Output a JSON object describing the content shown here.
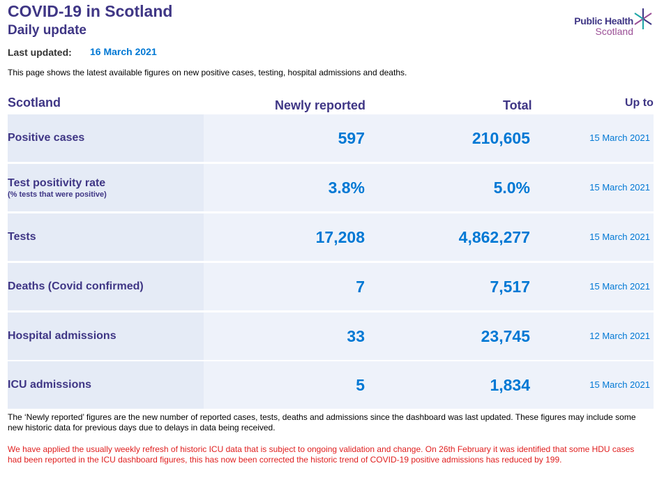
{
  "header": {
    "title": "COVID-19 in Scotland",
    "subtitle": "Daily update",
    "last_updated_label": "Last updated:",
    "last_updated_value": "16 March 2021",
    "intro": "This page shows the latest available figures on new positive cases, testing, hospital admissions and deaths."
  },
  "logo": {
    "line1": "Public Health",
    "line2": "Scotland"
  },
  "table": {
    "headers": {
      "region": "Scotland",
      "newly": "Newly reported",
      "total": "Total",
      "upto": "Up to"
    },
    "rows": [
      {
        "label": "Positive cases",
        "sublabel": "",
        "newly": "597",
        "total": "210,605",
        "date": "15 March 2021"
      },
      {
        "label": "Test positivity rate",
        "sublabel": "(% tests that were positive)",
        "newly": "3.8%",
        "total": "5.0%",
        "date": "15 March 2021"
      },
      {
        "label": "Tests",
        "sublabel": "",
        "newly": "17,208",
        "total": "4,862,277",
        "date": "15 March 2021"
      },
      {
        "label": "Deaths (Covid confirmed)",
        "sublabel": "",
        "newly": "7",
        "total": "7,517",
        "date": "15 March 2021"
      },
      {
        "label": "Hospital admissions",
        "sublabel": "",
        "newly": "33",
        "total": "23,745",
        "date": "12 March 2021"
      },
      {
        "label": "ICU admissions",
        "sublabel": "",
        "newly": "5",
        "total": "1,834",
        "date": "15 March 2021"
      }
    ]
  },
  "notes": {
    "newly_reported": "The ‘Newly reported’ figures are the new number of reported cases, tests, deaths and admissions since the dashboard was last updated. These figures may include some new historic data for previous days due to delays in data being received.",
    "icu_refresh": "We have applied the usually weekly refresh of historic ICU data that is subject to ongoing validation and change. On 26th February it was identified that some HDU cases had been reported in the ICU dashboard figures, this has now been corrected the historic trend of COVID-19 positive admissions has reduced by 199."
  },
  "colors": {
    "brand_purple": "#3f3685",
    "value_blue": "#0078d4",
    "row_bg": "#eef2fa",
    "warning_red": "#e02020"
  }
}
